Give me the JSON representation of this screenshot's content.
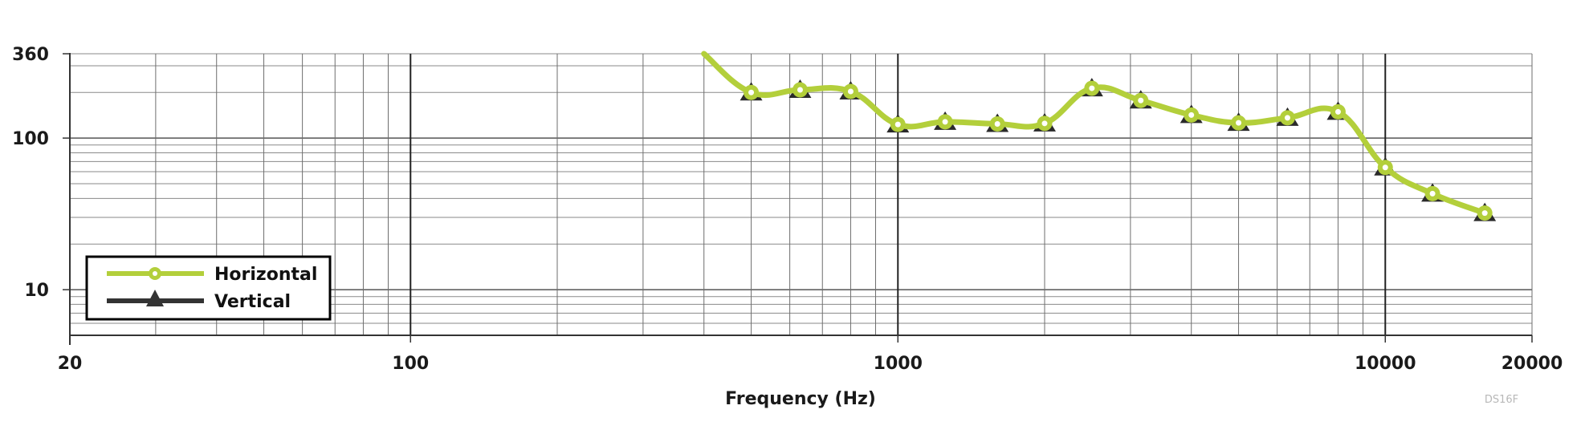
{
  "chart_data": {
    "type": "line",
    "title": "",
    "xlabel": "Frequency (Hz)",
    "ylabel": "",
    "x_scale": "log",
    "y_scale": "log",
    "xlim": [
      20,
      20000
    ],
    "ylim": [
      5,
      360
    ],
    "x_tick_labels": [
      "20",
      "100",
      "1000",
      "10000",
      "20000"
    ],
    "x_ticks": [
      20,
      100,
      1000,
      10000,
      20000
    ],
    "y_tick_labels": [
      "360",
      "100",
      "10"
    ],
    "y_ticks": [
      360,
      100,
      10
    ],
    "grid": true,
    "legend_position": "lower-left",
    "x": [
      400,
      500,
      630,
      800,
      1000,
      1250,
      1600,
      2000,
      2500,
      3150,
      4000,
      5000,
      6300,
      8000,
      10000,
      12500,
      16000
    ],
    "series": [
      {
        "name": "Horizontal",
        "color": "#b3cf3b",
        "marker": "circle",
        "values": [
          360,
          200,
          208,
          203,
          123,
          128,
          124,
          125,
          213,
          177,
          142,
          126,
          136,
          149,
          64,
          43,
          32
        ]
      },
      {
        "name": "Vertical",
        "color": "#333333",
        "marker": "triangle",
        "values": [
          360,
          200,
          208,
          203,
          123,
          128,
          124,
          125,
          213,
          177,
          142,
          126,
          136,
          149,
          64,
          43,
          32
        ]
      }
    ],
    "annotations": [
      "DS16F"
    ]
  },
  "legend": {
    "items": [
      {
        "label": "Horizontal",
        "color": "#b3cf3b",
        "marker": "circle"
      },
      {
        "label": "Vertical",
        "color": "#333333",
        "marker": "triangle"
      }
    ]
  },
  "axes": {
    "x_title": "Frequency (Hz)"
  },
  "watermark": "DS16F"
}
